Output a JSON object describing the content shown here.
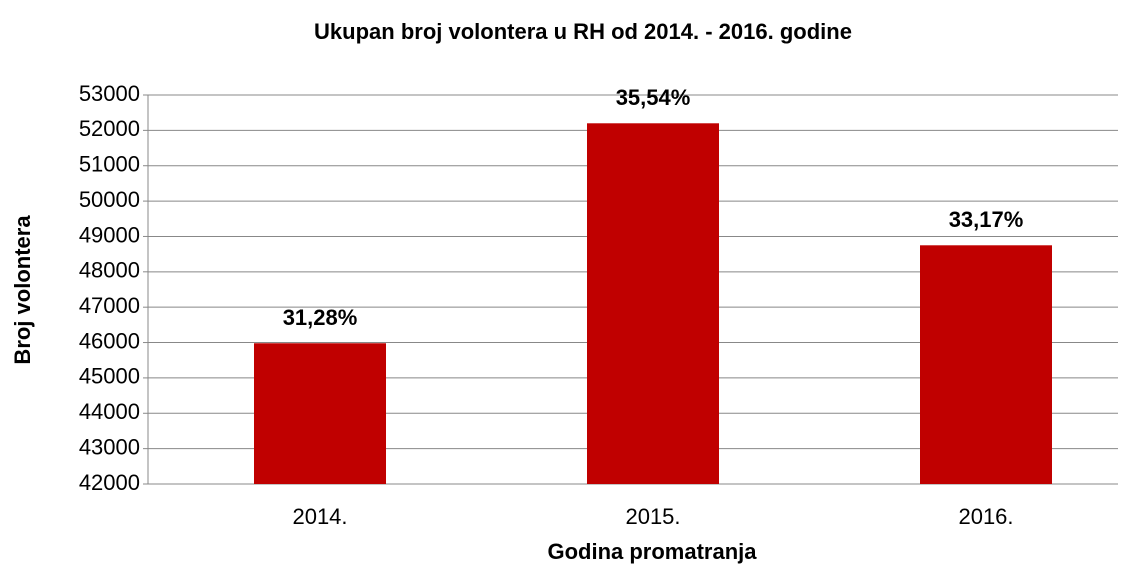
{
  "chart_data": {
    "type": "bar",
    "title": "Ukupan broj volontera u RH od 2014. - 2016. godine",
    "x_label": "Godina promatranja",
    "y_label": "Broj volontera",
    "categories": [
      "2014.",
      "2015.",
      "2016."
    ],
    "values": [
      45980,
      52200,
      48750
    ],
    "annotations": [
      "31,28%",
      "35,54%",
      "33,17%"
    ],
    "color": "#c00000",
    "ylim": [
      42000,
      53000
    ],
    "yticks": [
      42000,
      43000,
      44000,
      45000,
      46000,
      47000,
      48000,
      49000,
      50000,
      51000,
      52000,
      53000
    ],
    "grid": true
  }
}
